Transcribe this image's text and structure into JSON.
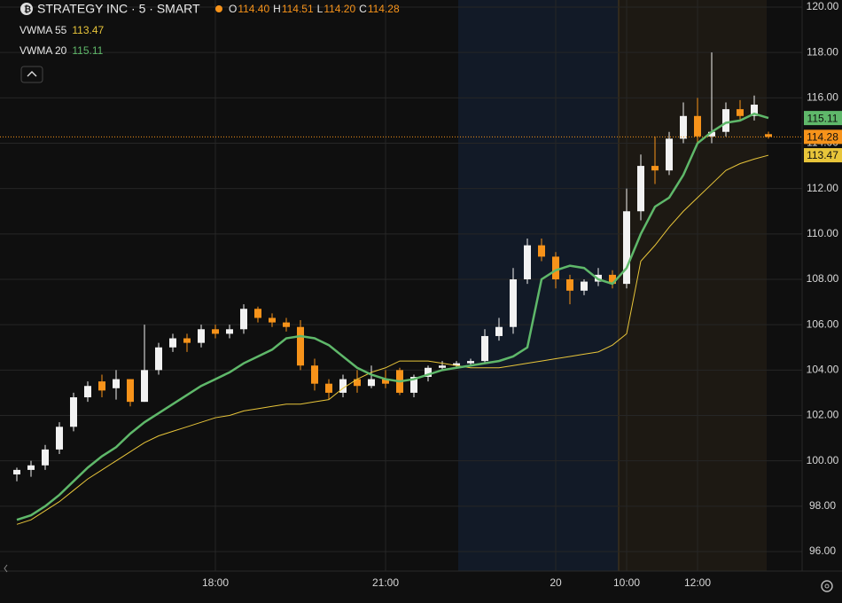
{
  "chart_data": {
    "type": "candlestick",
    "title": "STRATEGY INC · 5 · SMART",
    "legend_ohlc": [
      {
        "key": "O",
        "text": "114.40"
      },
      {
        "key": "H",
        "text": "114.51"
      },
      {
        "key": "L",
        "text": "114.20"
      },
      {
        "key": "C",
        "text": "114.28"
      }
    ],
    "categories": [
      null,
      null,
      null,
      null,
      null,
      null,
      null,
      null,
      null,
      null,
      null,
      null,
      null,
      null,
      "18:00",
      null,
      null,
      null,
      null,
      null,
      null,
      null,
      null,
      null,
      null,
      null,
      "21:00",
      null,
      null,
      null,
      null,
      null,
      null,
      null,
      null,
      null,
      null,
      null,
      "20",
      null,
      null,
      null,
      null,
      "10:00",
      null,
      null,
      null,
      null,
      "12:00",
      null,
      null,
      null,
      null,
      null
    ],
    "open": [
      99.4,
      99.6,
      99.8,
      100.5,
      101.5,
      102.8,
      103.5,
      103.2,
      103.6,
      102.6,
      104,
      105,
      105.4,
      105.2,
      105.8,
      105.6,
      105.8,
      106.7,
      106.3,
      106.1,
      105.9,
      104.2,
      103.4,
      103,
      103.6,
      103.3,
      103.6,
      104,
      103,
      103.7,
      104.1,
      104.2,
      104.3,
      104.4,
      105.5,
      105.9,
      108,
      109.5,
      109,
      108,
      107.5,
      107.9,
      108.2,
      107.8,
      111,
      113,
      112.8,
      114.2,
      115.2,
      114.3,
      114.5,
      115.5,
      115.2,
      114.4
    ],
    "high": [
      99.7,
      100,
      100.7,
      101.7,
      103,
      103.5,
      103.8,
      104,
      103.6,
      106,
      105.2,
      105.6,
      105.6,
      106,
      106,
      106,
      106.9,
      106.8,
      106.5,
      106.3,
      106.2,
      104.5,
      103.6,
      103.8,
      104,
      104.2,
      104,
      104.1,
      103.8,
      104.2,
      104.4,
      104.4,
      104.5,
      105.8,
      106.3,
      108.5,
      109.8,
      109.8,
      109.2,
      108.2,
      108,
      108.5,
      108.4,
      112,
      113.5,
      114.3,
      114.5,
      115.8,
      116,
      118,
      115.8,
      115.9,
      116.1,
      114.51
    ],
    "low": [
      99.1,
      99.3,
      99.6,
      100.3,
      101.3,
      102.6,
      102.8,
      102.7,
      102.4,
      102.6,
      103.8,
      104.8,
      104.8,
      105,
      105.4,
      105.4,
      105.6,
      106.1,
      105.9,
      105.7,
      104,
      103.1,
      102.7,
      102.8,
      103,
      103.2,
      103.2,
      102.9,
      102.8,
      103.5,
      104,
      104.1,
      104.2,
      104.3,
      105.3,
      105.6,
      107.8,
      108.8,
      107.6,
      106.9,
      107.3,
      107.7,
      107.6,
      107.6,
      110.6,
      112.2,
      112.6,
      114,
      114,
      114,
      114.3,
      115,
      115,
      114.2
    ],
    "close": [
      99.6,
      99.8,
      100.5,
      101.5,
      102.8,
      103.3,
      103.1,
      103.6,
      102.6,
      104,
      105,
      105.4,
      105.2,
      105.8,
      105.6,
      105.8,
      106.7,
      106.3,
      106.1,
      105.9,
      104.2,
      103.4,
      103,
      103.6,
      103.3,
      103.6,
      103.4,
      103,
      103.7,
      104.1,
      104.2,
      104.3,
      104.4,
      105.5,
      105.9,
      108,
      109.5,
      109,
      108,
      107.5,
      107.9,
      108.2,
      107.8,
      111,
      113,
      112.8,
      114.2,
      115.2,
      114.3,
      114.5,
      115.5,
      115.2,
      115.7,
      114.28
    ],
    "up_color": "#f2f2f2",
    "down_color": "#f7931a",
    "series": [
      {
        "name": "VWMA 55",
        "color": "#e8c53a",
        "values": [
          97.2,
          97.4,
          97.8,
          98.2,
          98.7,
          99.2,
          99.6,
          100,
          100.4,
          100.8,
          101.1,
          101.3,
          101.5,
          101.7,
          101.9,
          102,
          102.2,
          102.3,
          102.4,
          102.5,
          102.5,
          102.6,
          102.7,
          103.2,
          103.6,
          103.9,
          104.1,
          104.4,
          104.4,
          104.4,
          104.3,
          104.2,
          104.1,
          104.1,
          104.1,
          104.2,
          104.3,
          104.4,
          104.5,
          104.6,
          104.7,
          104.8,
          105.1,
          105.6,
          108.8,
          109.5,
          110.3,
          111,
          111.6,
          112.2,
          112.8,
          113.1,
          113.3,
          113.47
        ]
      },
      {
        "name": "VWMA 20",
        "color": "#5fb86a",
        "values": [
          97.4,
          97.6,
          98,
          98.5,
          99.1,
          99.7,
          100.2,
          100.6,
          101.2,
          101.7,
          102.1,
          102.5,
          102.9,
          103.3,
          103.6,
          103.9,
          104.3,
          104.6,
          104.9,
          105.4,
          105.5,
          105.4,
          105.1,
          104.6,
          104.1,
          103.8,
          103.6,
          103.5,
          103.6,
          103.8,
          104,
          104.1,
          104.2,
          104.3,
          104.4,
          104.6,
          105,
          108,
          108.4,
          108.6,
          108.5,
          108,
          107.8,
          108.5,
          110,
          111.2,
          111.6,
          112.6,
          114,
          114.5,
          114.9,
          115,
          115.3,
          115.11
        ]
      }
    ],
    "ylim": [
      96,
      120
    ],
    "yticks": [
      {
        "value": 96,
        "label": "96.00"
      },
      {
        "value": 98,
        "label": "98.00"
      },
      {
        "value": 100,
        "label": "100.00"
      },
      {
        "value": 102,
        "label": "102.00"
      },
      {
        "value": 104,
        "label": "104.00"
      },
      {
        "value": 106,
        "label": "106.00"
      },
      {
        "value": 108,
        "label": "108.00"
      },
      {
        "value": 110,
        "label": "110.00"
      },
      {
        "value": 112,
        "label": "112.00"
      },
      {
        "value": 114,
        "label": "114.00"
      },
      {
        "value": 116,
        "label": "116.00"
      },
      {
        "value": 118,
        "label": "118.00"
      },
      {
        "value": 120,
        "label": "120.00"
      }
    ],
    "grid": true
  }
}
